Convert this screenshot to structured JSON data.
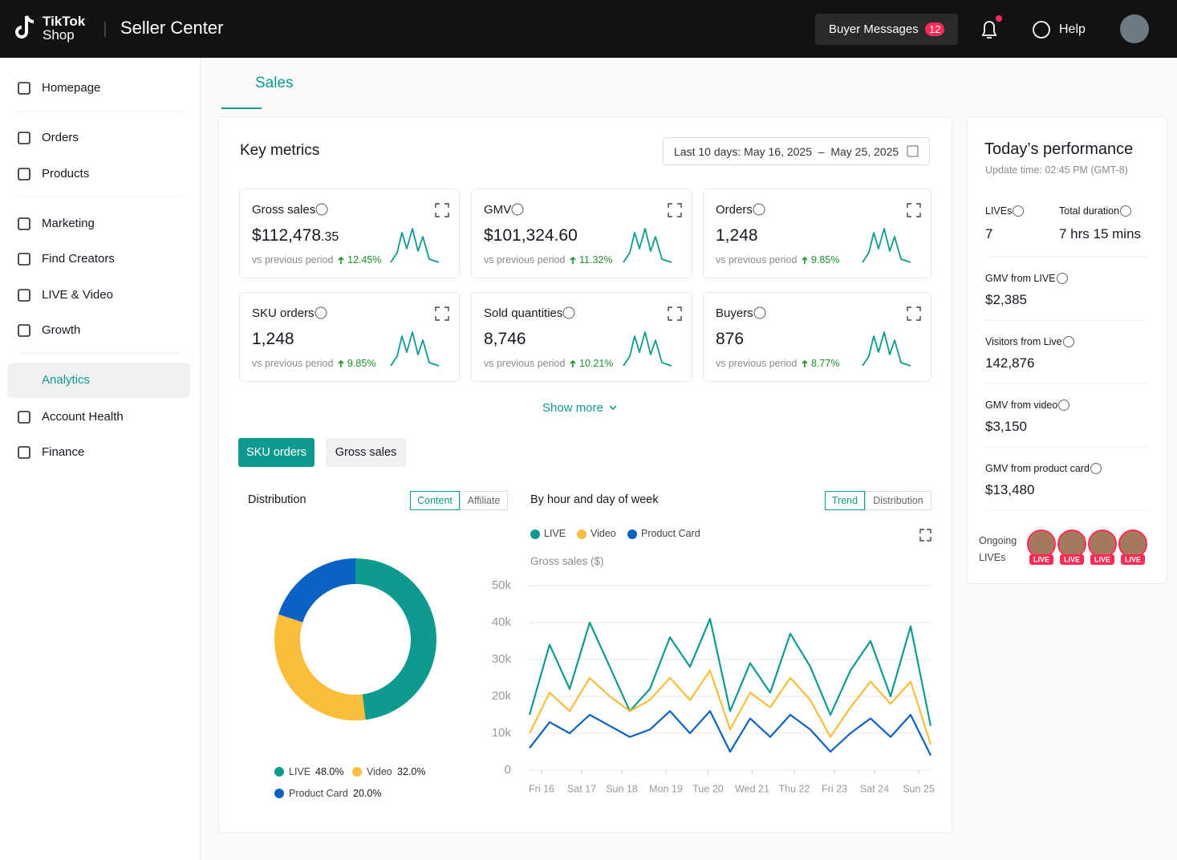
{
  "header": {
    "logo": [
      "TikTok",
      "Shop"
    ],
    "title": "Seller Center",
    "buyer_messages": "Buyer Messages",
    "message_count": 12,
    "help": "Help"
  },
  "sidebar": {
    "items": [
      "Homepage",
      "Orders",
      "Products",
      "Marketing",
      "Find Creators",
      "LIVE & Video",
      "Growth",
      "Analytics",
      "Account Health",
      "Finance"
    ],
    "active": 7
  },
  "tab": "Sales",
  "key_metrics": {
    "title": "Key metrics",
    "date_range": "Last 10 days: May 16, 2025  –  May 25, 2025",
    "compare": "vs previous period",
    "show_more": "Show more",
    "cards": [
      {
        "label": "Gross sales",
        "value": "$112,478",
        "value_small": ".35",
        "change": "12.45%"
      },
      {
        "label": "GMV",
        "value": "$101,324.60",
        "change": "11.32%"
      },
      {
        "label": "Orders",
        "value": "1,248",
        "change": "9.85%"
      },
      {
        "label": "SKU orders",
        "value": "1,248",
        "change": "9.85%"
      },
      {
        "label": "Sold quantities",
        "value": "8,746",
        "change": "10.21%"
      },
      {
        "label": "Buyers",
        "value": "876",
        "change": "8.77%"
      }
    ]
  },
  "view_toggle": {
    "options": [
      "SKU orders",
      "Gross sales"
    ],
    "active": 0
  },
  "chart_data": [
    {
      "type": "pie",
      "donut": true,
      "title": "Distribution",
      "toggle": [
        "Content",
        "Affiliate"
      ],
      "toggle_active": 0,
      "categories": [
        "LIVE",
        "Video",
        "Product Card"
      ],
      "values": [
        48,
        32,
        20
      ],
      "value_labels": [
        "48.0%",
        "32.0%",
        "20.0%"
      ],
      "colors": [
        "#0f9a8f",
        "#fbbd3c",
        "#0b62c4"
      ]
    },
    {
      "type": "line",
      "title": "By hour and day of week",
      "toggle": [
        "Trend",
        "Distribution"
      ],
      "toggle_active": 0,
      "y_label": "Gross sales ($)",
      "x": [
        0,
        1,
        2,
        3,
        4,
        5,
        6,
        7,
        8,
        9,
        10,
        11,
        12,
        13,
        14,
        15,
        16,
        17,
        18,
        19,
        20
      ],
      "xlim": [
        0,
        20
      ],
      "xticks": [
        {
          "value": 0.6,
          "label": "Fri 16"
        },
        {
          "value": 2.6,
          "label": "Sat 17"
        },
        {
          "value": 4.6,
          "label": "Sun 18"
        },
        {
          "value": 6.8,
          "label": "Mon 19"
        },
        {
          "value": 8.9,
          "label": "Tue 20"
        },
        {
          "value": 11.1,
          "label": "Wed 21"
        },
        {
          "value": 13.2,
          "label": "Thu 22"
        },
        {
          "value": 15.2,
          "label": "Fri 23"
        },
        {
          "value": 17.2,
          "label": "Sat 24"
        },
        {
          "value": 19.4,
          "label": "Sun 25"
        }
      ],
      "ylim": [
        0,
        50000
      ],
      "yticks": [
        0,
        {
          "value": 10000,
          "label": "10k"
        },
        {
          "value": 20000,
          "label": "20k"
        },
        {
          "value": 30000,
          "label": "30k"
        },
        {
          "value": 40000,
          "label": "40k"
        },
        {
          "value": 50000,
          "label": "50k"
        }
      ],
      "grid": true,
      "series": [
        {
          "name": "LIVE",
          "color": "#0f9a8f",
          "values": [
            15000,
            34000,
            22000,
            40000,
            28000,
            16000,
            22000,
            36000,
            28000,
            41000,
            16000,
            29000,
            21000,
            37000,
            28000,
            15000,
            27000,
            35000,
            20000,
            39000,
            12000
          ]
        },
        {
          "name": "Video",
          "color": "#fbbd3c",
          "values": [
            10000,
            21000,
            16000,
            25000,
            20000,
            16000,
            19000,
            25000,
            19000,
            27000,
            11000,
            21000,
            17000,
            25000,
            19000,
            9000,
            17000,
            24000,
            18000,
            24000,
            7000
          ]
        },
        {
          "name": "Product Card",
          "color": "#0b62c4",
          "values": [
            6000,
            13000,
            10000,
            15000,
            12000,
            9000,
            11000,
            16000,
            10000,
            16000,
            5000,
            14000,
            9000,
            15000,
            11000,
            5000,
            10000,
            14000,
            9000,
            15000,
            4000
          ]
        }
      ]
    }
  ],
  "today": {
    "title": "Today’s performance",
    "update": "Update time: 02:45 PM (GMT-8)",
    "lives_label": "LIVEs",
    "lives": 7,
    "duration_label": "Total duration",
    "duration": "7 hrs 15 mins",
    "stats": [
      {
        "label": "GMV from LIVE",
        "value": "$2,385"
      },
      {
        "label": "Visitors from Live",
        "value": "142,876"
      },
      {
        "label": "GMV from video",
        "value": "$3,150"
      },
      {
        "label": "GMV from product card",
        "value": "$13,480"
      }
    ],
    "ongoing": "Ongoing LIVEs",
    "badges": [
      "LIVE",
      "LIVE",
      "LIVE",
      "LIVE"
    ]
  }
}
